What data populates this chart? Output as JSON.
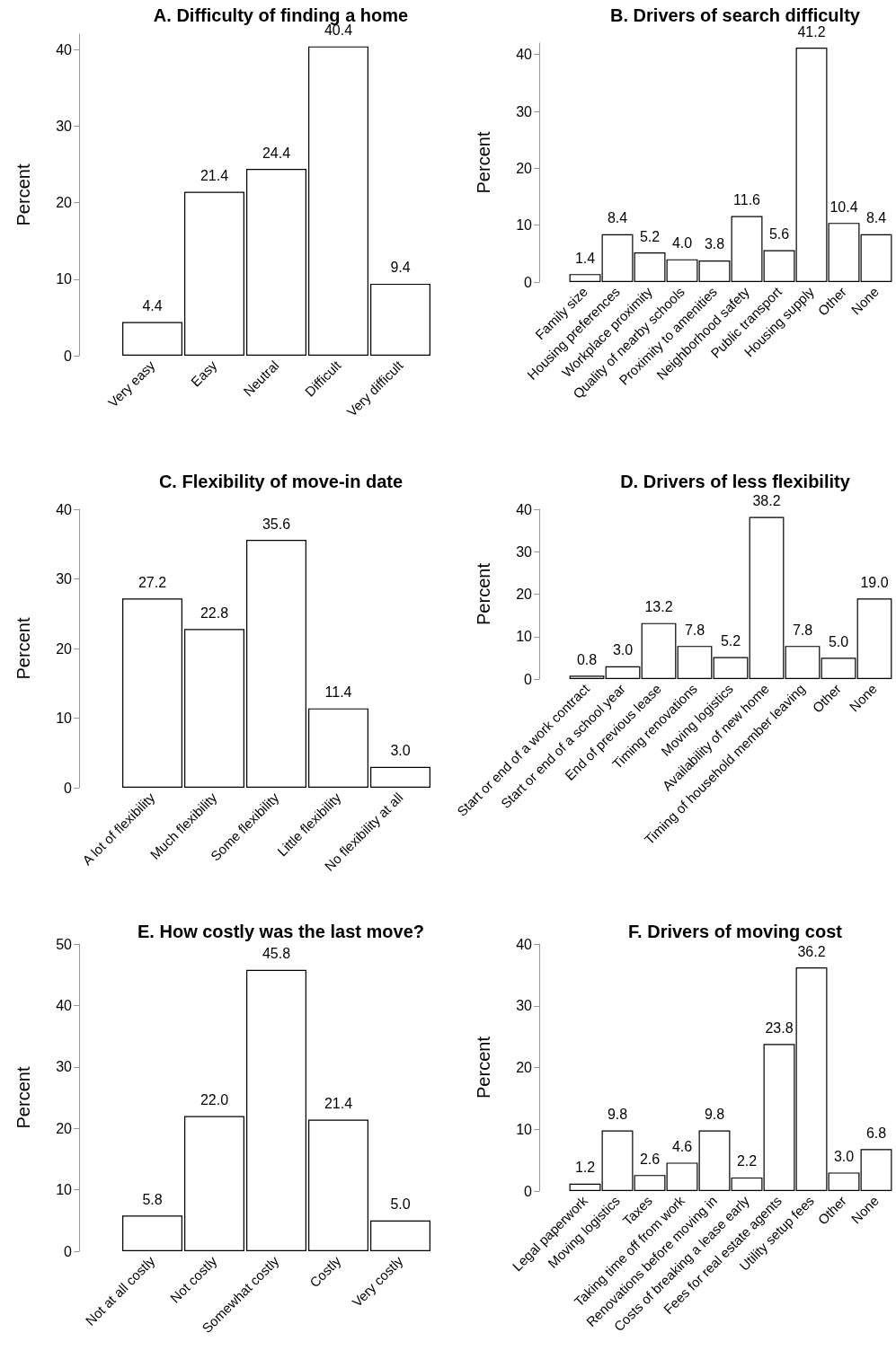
{
  "chart_data": [
    {
      "type": "bar",
      "title": "A. Difficulty of finding a home",
      "ylabel": "Percent",
      "categories": [
        "Very easy",
        "Easy",
        "Neutral",
        "Difficult",
        "Very difficult"
      ],
      "values": [
        4.4,
        21.4,
        24.4,
        40.4,
        9.4
      ],
      "value_labels": [
        "4.4",
        "21.4",
        "24.4",
        "40.4",
        "9.4"
      ],
      "color": "#ffffff",
      "ylim": [
        0,
        42
      ],
      "yticks": [
        0,
        10,
        20,
        30,
        40
      ]
    },
    {
      "type": "bar",
      "title": "B. Drivers of search difficulty",
      "ylabel": "Percent",
      "categories": [
        "Family size",
        "Housing preferences",
        "Workplace proximity",
        "Quality of nearby schools",
        "Proximity to amenities",
        "Neighborhood safety",
        "Public transport",
        "Housing supply",
        "Other",
        "None"
      ],
      "values": [
        1.4,
        8.4,
        5.2,
        4.0,
        3.8,
        11.6,
        5.6,
        41.2,
        10.4,
        8.4
      ],
      "value_labels": [
        "1.4",
        "8.4",
        "5.2",
        "4.0",
        "3.8",
        "11.6",
        "5.6",
        "41.2",
        "10.4",
        "8.4"
      ],
      "color": "#ffffff",
      "ylim": [
        0,
        42
      ],
      "yticks": [
        0,
        10,
        20,
        30,
        40
      ]
    },
    {
      "type": "bar",
      "title": "C. Flexibility of move-in date",
      "ylabel": "Percent",
      "categories": [
        "A lot of flexibility",
        "Much flexibility",
        "Some flexibility",
        "Little flexibility",
        "No flexibility at all"
      ],
      "values": [
        27.2,
        22.8,
        35.6,
        11.4,
        3.0
      ],
      "value_labels": [
        "27.2",
        "22.8",
        "35.6",
        "11.4",
        "3.0"
      ],
      "color": "#ffffff",
      "ylim": [
        0,
        40
      ],
      "yticks": [
        0,
        10,
        20,
        30,
        40
      ]
    },
    {
      "type": "bar",
      "title": "D. Drivers of less flexibility",
      "ylabel": "Percent",
      "categories": [
        "Start or end of a work contract",
        "Start or end of a school year",
        "End of previous lease",
        "Timing renovations",
        "Moving logistics",
        "Availability of new home",
        "Timing of household member leaving",
        "Other",
        "None"
      ],
      "values": [
        0.8,
        3.0,
        13.2,
        7.8,
        5.2,
        38.2,
        7.8,
        5.0,
        19.0
      ],
      "value_labels": [
        "0.8",
        "3.0",
        "13.2",
        "7.8",
        "5.2",
        "38.2",
        "7.8",
        "5.0",
        "19.0"
      ],
      "color": "#ffffff",
      "ylim": [
        0,
        40
      ],
      "yticks": [
        0,
        10,
        20,
        30,
        40
      ]
    },
    {
      "type": "bar",
      "title": "E. How costly was the last move?",
      "ylabel": "Percent",
      "categories": [
        "Not at all costly",
        "Not costly",
        "Somewhat costly",
        "Costly",
        "Very costly"
      ],
      "values": [
        5.8,
        22.0,
        45.8,
        21.4,
        5.0
      ],
      "value_labels": [
        "5.8",
        "22.0",
        "45.8",
        "21.4",
        "5.0"
      ],
      "color": "#ffffff",
      "ylim": [
        0,
        50
      ],
      "yticks": [
        0,
        10,
        20,
        30,
        40,
        50
      ]
    },
    {
      "type": "bar",
      "title": "F. Drivers of moving cost",
      "ylabel": "Percent",
      "categories": [
        "Legal paperwork",
        "Moving logistics",
        "Taxes",
        "Taking time off from work",
        "Renovations before moving in",
        "Costs of breaking a lease early",
        "Fees for real estate agents",
        "Utility setup fees",
        "Other",
        "None"
      ],
      "values": [
        1.2,
        9.8,
        2.6,
        4.6,
        9.8,
        2.2,
        23.8,
        36.2,
        3.0,
        6.8
      ],
      "value_labels": [
        "1.2",
        "9.8",
        "2.6",
        "4.6",
        "9.8",
        "2.2",
        "23.8",
        "36.2",
        "3.0",
        "6.8"
      ],
      "color": "#ffffff",
      "ylim": [
        0,
        40
      ],
      "yticks": [
        0,
        10,
        20,
        30,
        40
      ]
    }
  ]
}
